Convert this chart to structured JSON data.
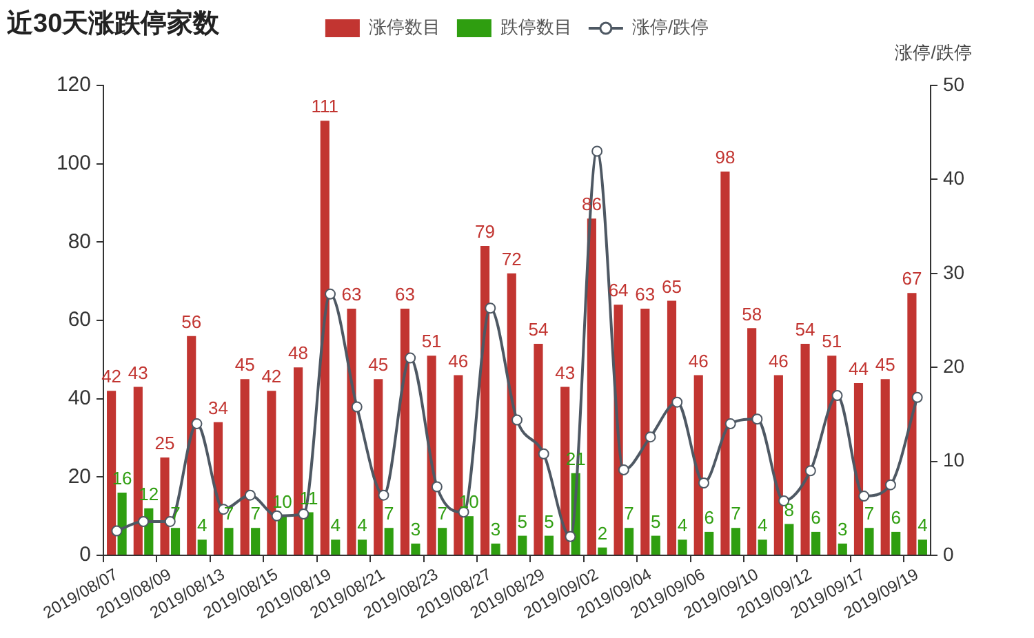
{
  "chart_data": {
    "type": "bar",
    "title": "近30天涨跌停家数",
    "y2label": "涨停/跌停",
    "categories": [
      "2019/08/07",
      null,
      "2019/08/09",
      null,
      "2019/08/13",
      null,
      "2019/08/15",
      null,
      "2019/08/19",
      null,
      "2019/08/21",
      null,
      "2019/08/23",
      null,
      "2019/08/27",
      null,
      "2019/08/29",
      null,
      "2019/09/02",
      null,
      "2019/09/04",
      null,
      "2019/09/06",
      null,
      "2019/09/10",
      null,
      "2019/09/12",
      null,
      "2019/09/17",
      null,
      "2019/09/19"
    ],
    "series": [
      {
        "name": "涨停数目",
        "color": "#c23531",
        "values": [
          42,
          43,
          25,
          56,
          34,
          45,
          42,
          48,
          111,
          63,
          45,
          63,
          51,
          46,
          79,
          72,
          54,
          43,
          86,
          64,
          63,
          65,
          46,
          98,
          58,
          46,
          54,
          51,
          44,
          45,
          67
        ],
        "value_labels": [
          "42",
          "43",
          "25",
          "56",
          "34",
          "45",
          "42",
          "48",
          "111",
          "63",
          "45",
          "63",
          "51",
          "46",
          "79",
          "72",
          "54",
          "43",
          "86",
          "64",
          "63",
          "65",
          "46",
          "98",
          "58",
          "46",
          "54",
          "51",
          "44",
          "45",
          "67"
        ]
      },
      {
        "name": "跌停数目",
        "color": "#2f9e10",
        "values": [
          16,
          12,
          7,
          4,
          7,
          7,
          10,
          11,
          4,
          4,
          7,
          3,
          7,
          10,
          3,
          5,
          5,
          21,
          2,
          7,
          5,
          4,
          6,
          7,
          4,
          8,
          6,
          3,
          7,
          6,
          4
        ],
        "value_labels": [
          "16",
          "12",
          "7",
          "4",
          "7",
          "7",
          "10",
          "11",
          "4",
          "4",
          "7",
          "3",
          "7",
          "10",
          "3",
          "5",
          "5",
          "21",
          "2",
          "7",
          "5",
          "4",
          "6",
          "7",
          "4",
          "8",
          "6",
          "3",
          "7",
          "6",
          "4"
        ]
      },
      {
        "name": "涨停/跌停",
        "type": "line",
        "axis": "y2",
        "color": "#4e5863",
        "values": [
          2.6,
          3.6,
          3.6,
          14,
          4.9,
          6.4,
          4.2,
          4.4,
          27.8,
          15.8,
          6.4,
          21,
          7.3,
          4.6,
          26.3,
          14.4,
          10.8,
          2,
          43,
          9.1,
          12.6,
          16.3,
          7.7,
          14,
          14.5,
          5.8,
          9,
          17,
          6.3,
          7.5,
          16.8
        ]
      }
    ],
    "ylim": [
      0,
      120
    ],
    "yticks": [
      0,
      20,
      40,
      60,
      80,
      100,
      120
    ],
    "y2lim": [
      0,
      50
    ],
    "y2ticks": [
      0,
      10,
      20,
      30,
      40,
      50
    ],
    "grid": false,
    "legend": "top",
    "marker": "circle"
  }
}
